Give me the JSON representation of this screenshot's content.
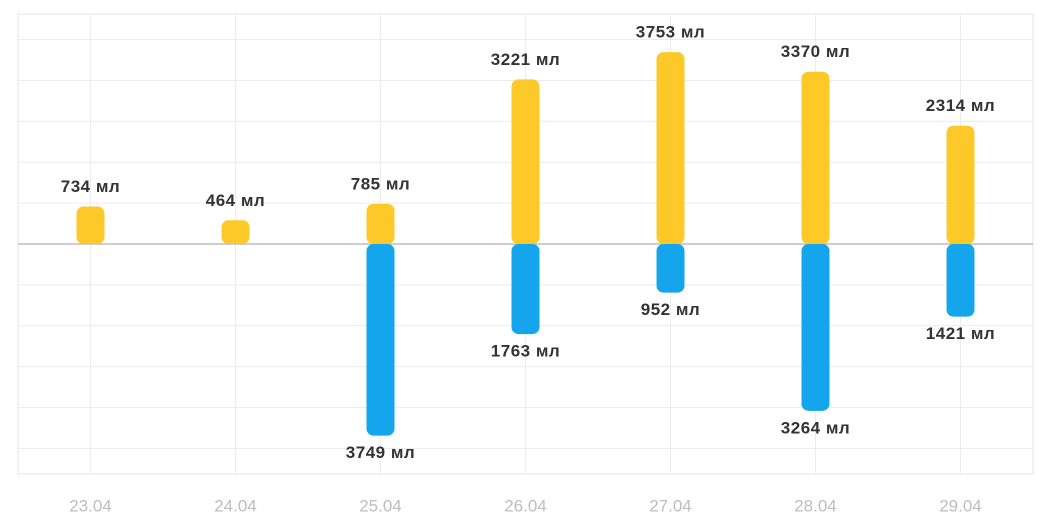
{
  "chart_data": {
    "type": "bar",
    "categories": [
      "23.04",
      "24.04",
      "25.04",
      "26.04",
      "27.04",
      "28.04",
      "29.04"
    ],
    "series": [
      {
        "color": "#fcc929",
        "values": [
          734,
          464,
          785,
          3221,
          3753,
          3370,
          2314
        ],
        "value_labels": [
          "734 мл",
          "464 мл",
          "785 мл",
          "3221 мл",
          "3753 мл",
          "3370 мл",
          "2314 мл"
        ]
      },
      {
        "color": "#15a5ec",
        "values": [
          null,
          null,
          -3749,
          -1763,
          -952,
          -3264,
          -1421
        ],
        "value_labels": [
          null,
          null,
          "3749 мл",
          "1763 мл",
          "952 мл",
          "3264 мл",
          "1421 мл"
        ]
      }
    ],
    "ylim": [
      -4500,
      4500
    ],
    "yticks": [
      -4000,
      -3200,
      -2400,
      -1600,
      -800,
      0,
      800,
      1600,
      2400,
      3200,
      4000
    ],
    "grid": true
  }
}
